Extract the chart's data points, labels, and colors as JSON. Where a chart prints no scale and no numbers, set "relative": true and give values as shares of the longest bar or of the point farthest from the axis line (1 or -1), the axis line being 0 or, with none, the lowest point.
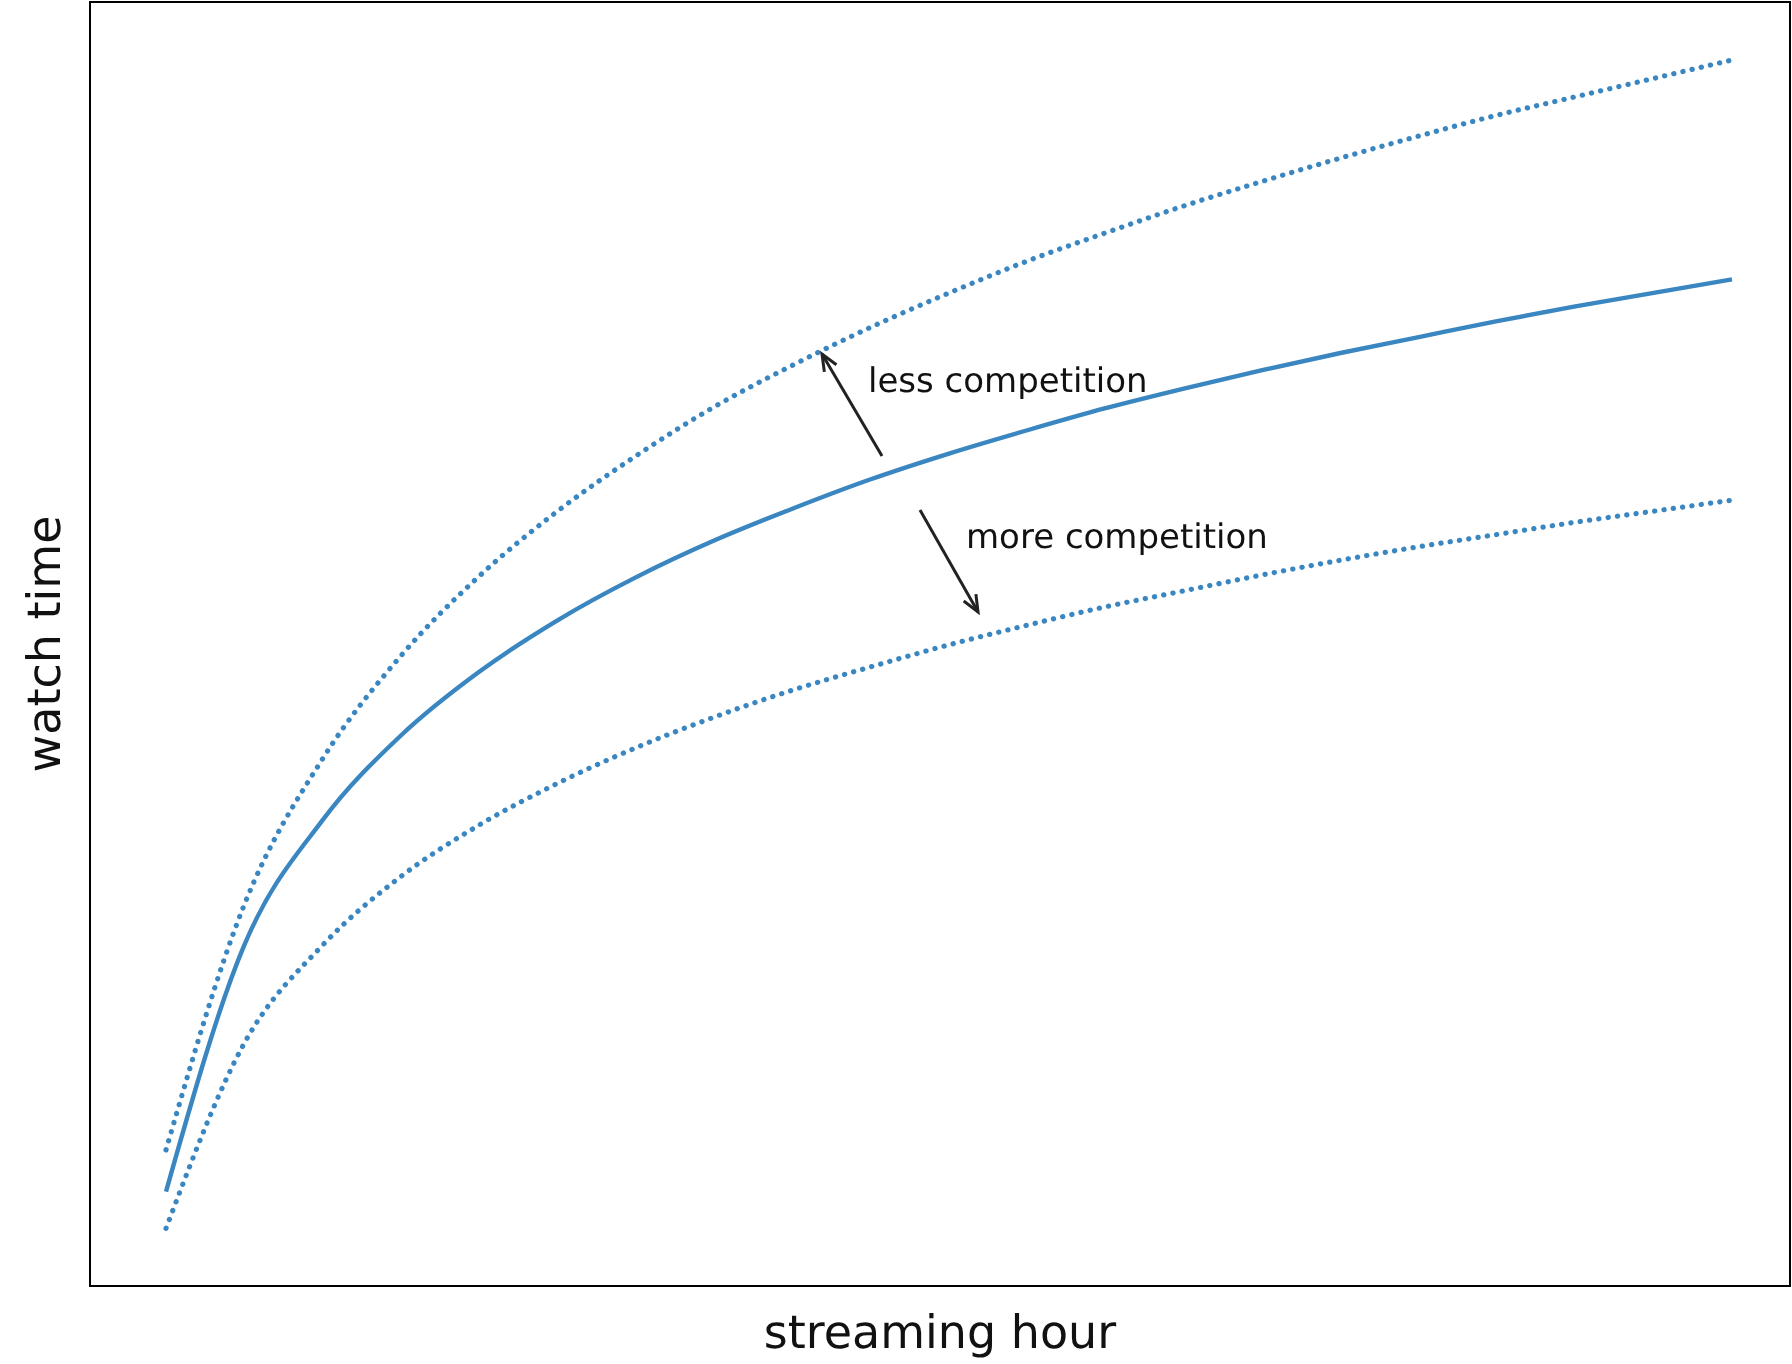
{
  "chart_data": {
    "type": "line",
    "relative": true,
    "xlabel": "streaming hour",
    "ylabel": "watch time",
    "categories": [
      null,
      null,
      null,
      null,
      null,
      null,
      null,
      null,
      null,
      null,
      null,
      null,
      null,
      null,
      null,
      null,
      null,
      null,
      null,
      null,
      null
    ],
    "series": [
      {
        "color": "#3a86c0",
        "line_style": "solid",
        "values": [
          0.077,
          0.278,
          0.38,
          0.449,
          0.501,
          0.543,
          0.578,
          0.608,
          0.634,
          0.658,
          0.679,
          0.698,
          0.716,
          0.732,
          0.747,
          0.761,
          0.774,
          0.787,
          0.799,
          0.81,
          0.821
        ]
      },
      {
        "color": "#3a86c0",
        "line_style": "dotted",
        "values": [
          0.111,
          0.311,
          0.43,
          0.514,
          0.579,
          0.632,
          0.677,
          0.717,
          0.751,
          0.782,
          0.81,
          0.836,
          0.859,
          0.881,
          0.901,
          0.92,
          0.938,
          0.955,
          0.97,
          0.985,
          1.0
        ]
      },
      {
        "color": "#3a86c0",
        "line_style": "dotted",
        "values": [
          0.047,
          0.198,
          0.278,
          0.334,
          0.376,
          0.41,
          0.439,
          0.464,
          0.486,
          0.505,
          0.523,
          0.539,
          0.554,
          0.567,
          0.58,
          0.592,
          0.603,
          0.613,
          0.623,
          0.632,
          0.641
        ]
      }
    ],
    "annotations": [
      "less competition",
      "more competition"
    ]
  }
}
